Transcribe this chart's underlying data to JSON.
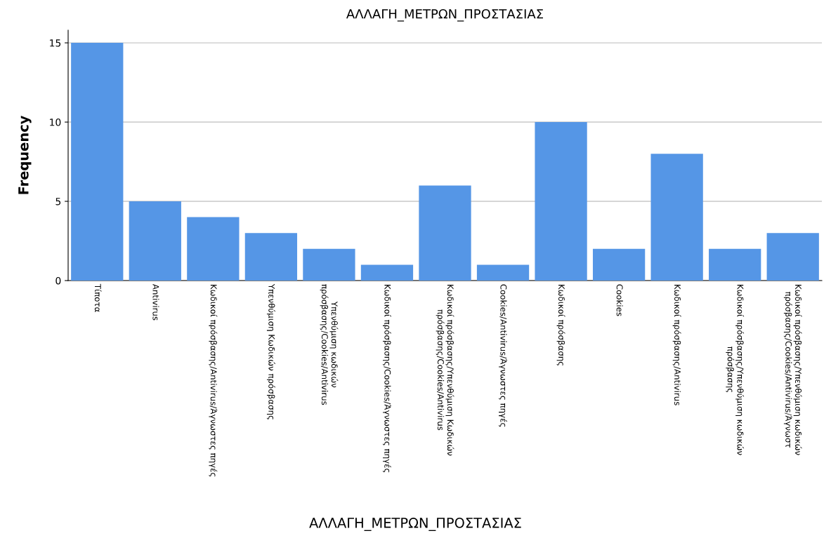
{
  "chart_data": {
    "type": "bar",
    "title": "ΑΛΛΑΓΗ_ΜΕΤΡΩΝ_ΠΡΟΣΤΑΣΙΑΣ",
    "xlabel": "ΑΛΛΑΓΗ_ΜΕΤΡΩΝ_ΠΡΟΣΤΑΣΙΑΣ",
    "ylabel": "Frequency",
    "categories": [
      "Τίποτα",
      "Antivirus",
      "Κωδικοί πρόσβασης/Antivirus/Άγνωστες πηγές",
      "Υπενθύμιση Κωδικών πρόσβασης",
      "Υπενθύμιση κωδικών\nπρόσβασης/Cookies/Antivirus",
      "Κωδικοί πρόσβασης/Cookies/Άγνωστες πηγές",
      "Κωδικοί πρόσβασης/Υπενθύμιση Κωδικών\nπρόσβασης/Cookies/Antivirus",
      "Cookies/Antivirus/Άγνωστες πηγές",
      "Κωδικοί πρόσβασης",
      "Cookies",
      "Κωδικοί πρόσβασης/Antivirus",
      "Κωδικοί πρόσβασης/Υπενθύμιση κωδικών\nπρόσβασης",
      "Κωδικοί πρόσβασης/Υπενθύμιση κωδικών\nπρόσβασης/Cookies/Antivirus/Άγνωστ"
    ],
    "values": [
      15,
      5,
      4,
      3,
      2,
      1,
      6,
      1,
      10,
      2,
      8,
      2,
      3
    ],
    "color": "#5596e6",
    "ylim": [
      0,
      15.8
    ],
    "yticks": [
      0,
      5,
      10,
      15
    ],
    "grid": "y"
  }
}
